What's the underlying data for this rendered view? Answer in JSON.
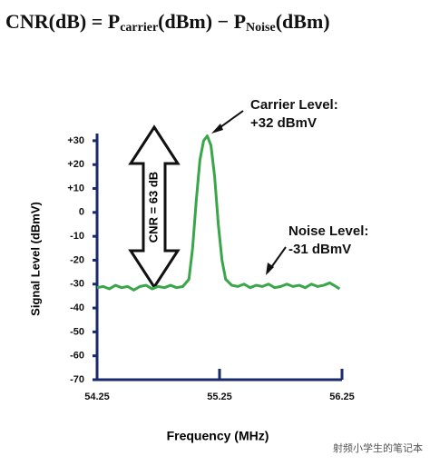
{
  "formula": [
    "CNR(dB) = P",
    "carrier",
    "(dBm) − P",
    "Noise",
    "(dBm)"
  ],
  "chart_data": {
    "type": "line",
    "xlabel": "Frequency (MHz)",
    "ylabel": "Signal Level (dBmV)",
    "annotations": {
      "carrier": [
        "Carrier Level:",
        "+32 dBmV"
      ],
      "noise": [
        "Noise Level:",
        "-31 dBmV"
      ],
      "cnr": "CNR = 63 dB"
    },
    "xlim": [
      54.25,
      56.25
    ],
    "xticks": [
      54.25,
      55.25,
      56.25
    ],
    "ylim": [
      -70,
      33
    ],
    "yticks": [
      {
        "value": 30,
        "label": "+30"
      },
      {
        "value": 20,
        "label": "+20"
      },
      {
        "value": 10,
        "label": "+10"
      },
      0,
      -10,
      -20,
      -30,
      -40,
      -50,
      -60,
      -70
    ],
    "series": [
      {
        "color": "#3aa64a",
        "x": [
          54.25,
          54.3,
          54.35,
          54.4,
          54.45,
          54.5,
          54.55,
          54.6,
          54.65,
          54.7,
          54.75,
          54.8,
          54.85,
          54.9,
          54.95,
          55.0,
          55.03,
          55.06,
          55.09,
          55.12,
          55.15,
          55.18,
          55.21,
          55.24,
          55.27,
          55.3,
          55.35,
          55.4,
          55.45,
          55.5,
          55.55,
          55.6,
          55.65,
          55.7,
          55.75,
          55.8,
          55.85,
          55.9,
          55.95,
          56.0,
          56.05,
          56.1,
          56.15,
          56.2,
          56.23
        ],
        "values": [
          -31.5,
          -31,
          -32,
          -30.5,
          -31.5,
          -31,
          -32.5,
          -31,
          -30.5,
          -32,
          -31,
          -31.5,
          -30.5,
          -31.5,
          -31,
          -28,
          -15,
          5,
          22,
          30,
          32,
          28,
          15,
          -5,
          -20,
          -28,
          -30.5,
          -31,
          -30,
          -31.5,
          -30.5,
          -31,
          -30,
          -31.5,
          -31,
          -30,
          -31,
          -30.5,
          -31.5,
          -30,
          -31,
          -30.5,
          -29.5,
          -31,
          -32
        ]
      }
    ]
  },
  "watermark": "射频小学生的笔记本"
}
